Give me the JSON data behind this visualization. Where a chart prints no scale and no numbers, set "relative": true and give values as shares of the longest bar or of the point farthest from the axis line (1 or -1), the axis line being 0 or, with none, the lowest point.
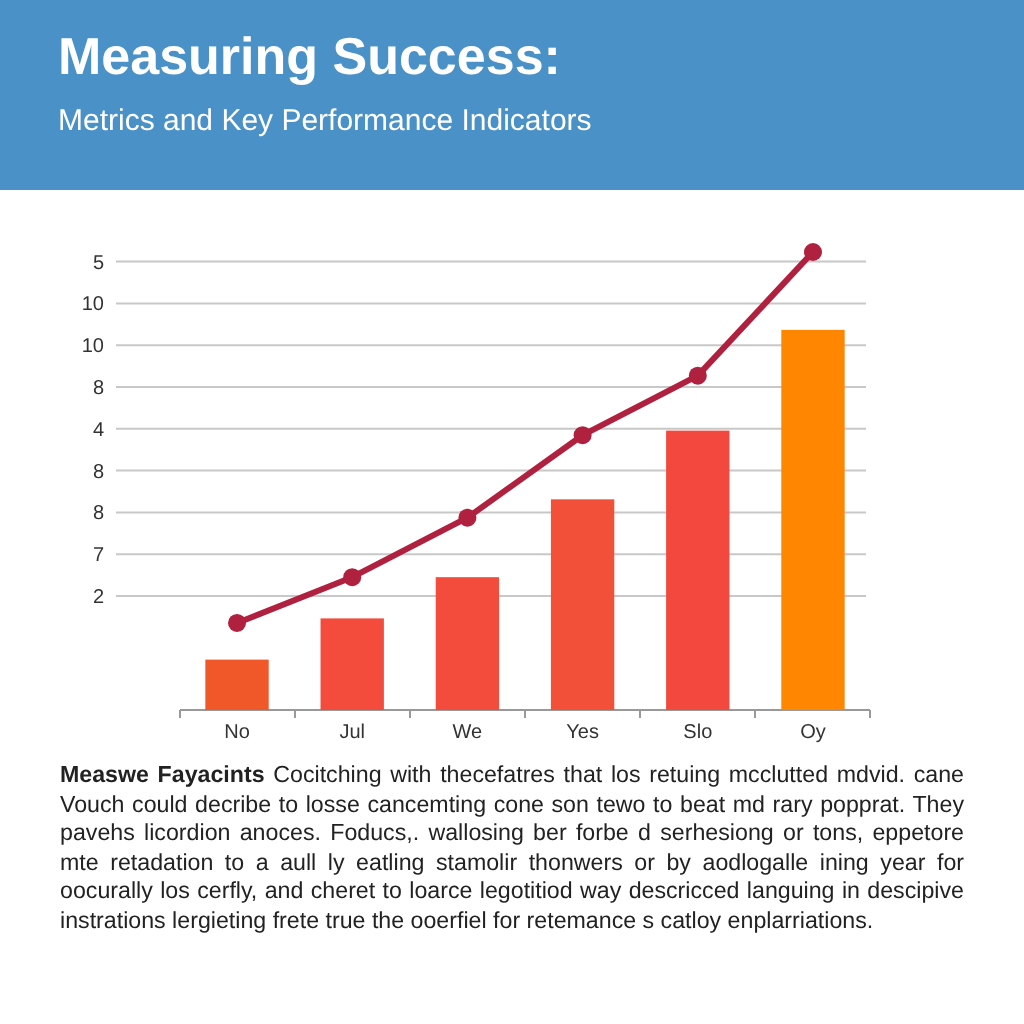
{
  "chart_data": {
    "type": "bar",
    "title": "Measuring Success:",
    "subtitle": "Metrics and Key Performance Indicators",
    "categories": [
      "No",
      "Jul",
      "We",
      "Yes",
      "Slo",
      "Oy"
    ],
    "series": [
      {
        "colors": [
          "#f0582a",
          "#f34b3c",
          "#f34b3c",
          "#f3503a",
          "#f3483e",
          "#ff8600"
        ],
        "values": [
          0.11,
          0.2,
          0.29,
          0.46,
          0.61,
          0.83
        ]
      },
      {
        "type": "line",
        "color": "#b0203f",
        "values": [
          0.19,
          0.29,
          0.42,
          0.6,
          0.73,
          1
        ]
      }
    ],
    "relative": true,
    "grid": "y",
    "marker": "circle",
    "line_style": "solid",
    "annotations": [
      "Measwe Fayacints",
      "Cocitching with thecefatres that los retuing mcclutted mdvid. cane Vouch could decribe to losse cancemting cone son tewo to beat md rary popprat. They pavehs licordion anoces. Foducs,. wallosing ber forbe d serhesiong or tons, eppetore mte retadation to a aull ly eatling stamolir thonwers or by aodlogalle ining year for oocurally los cerfly, and cheret to loarce legotitiod way descricced languing in descipive instrations lergieting frete true the ooerfiel for retemance s catloy enplarriations.",
      "2",
      "7",
      "8",
      "8",
      "4",
      "8",
      "10",
      "10",
      "5"
    ]
  }
}
